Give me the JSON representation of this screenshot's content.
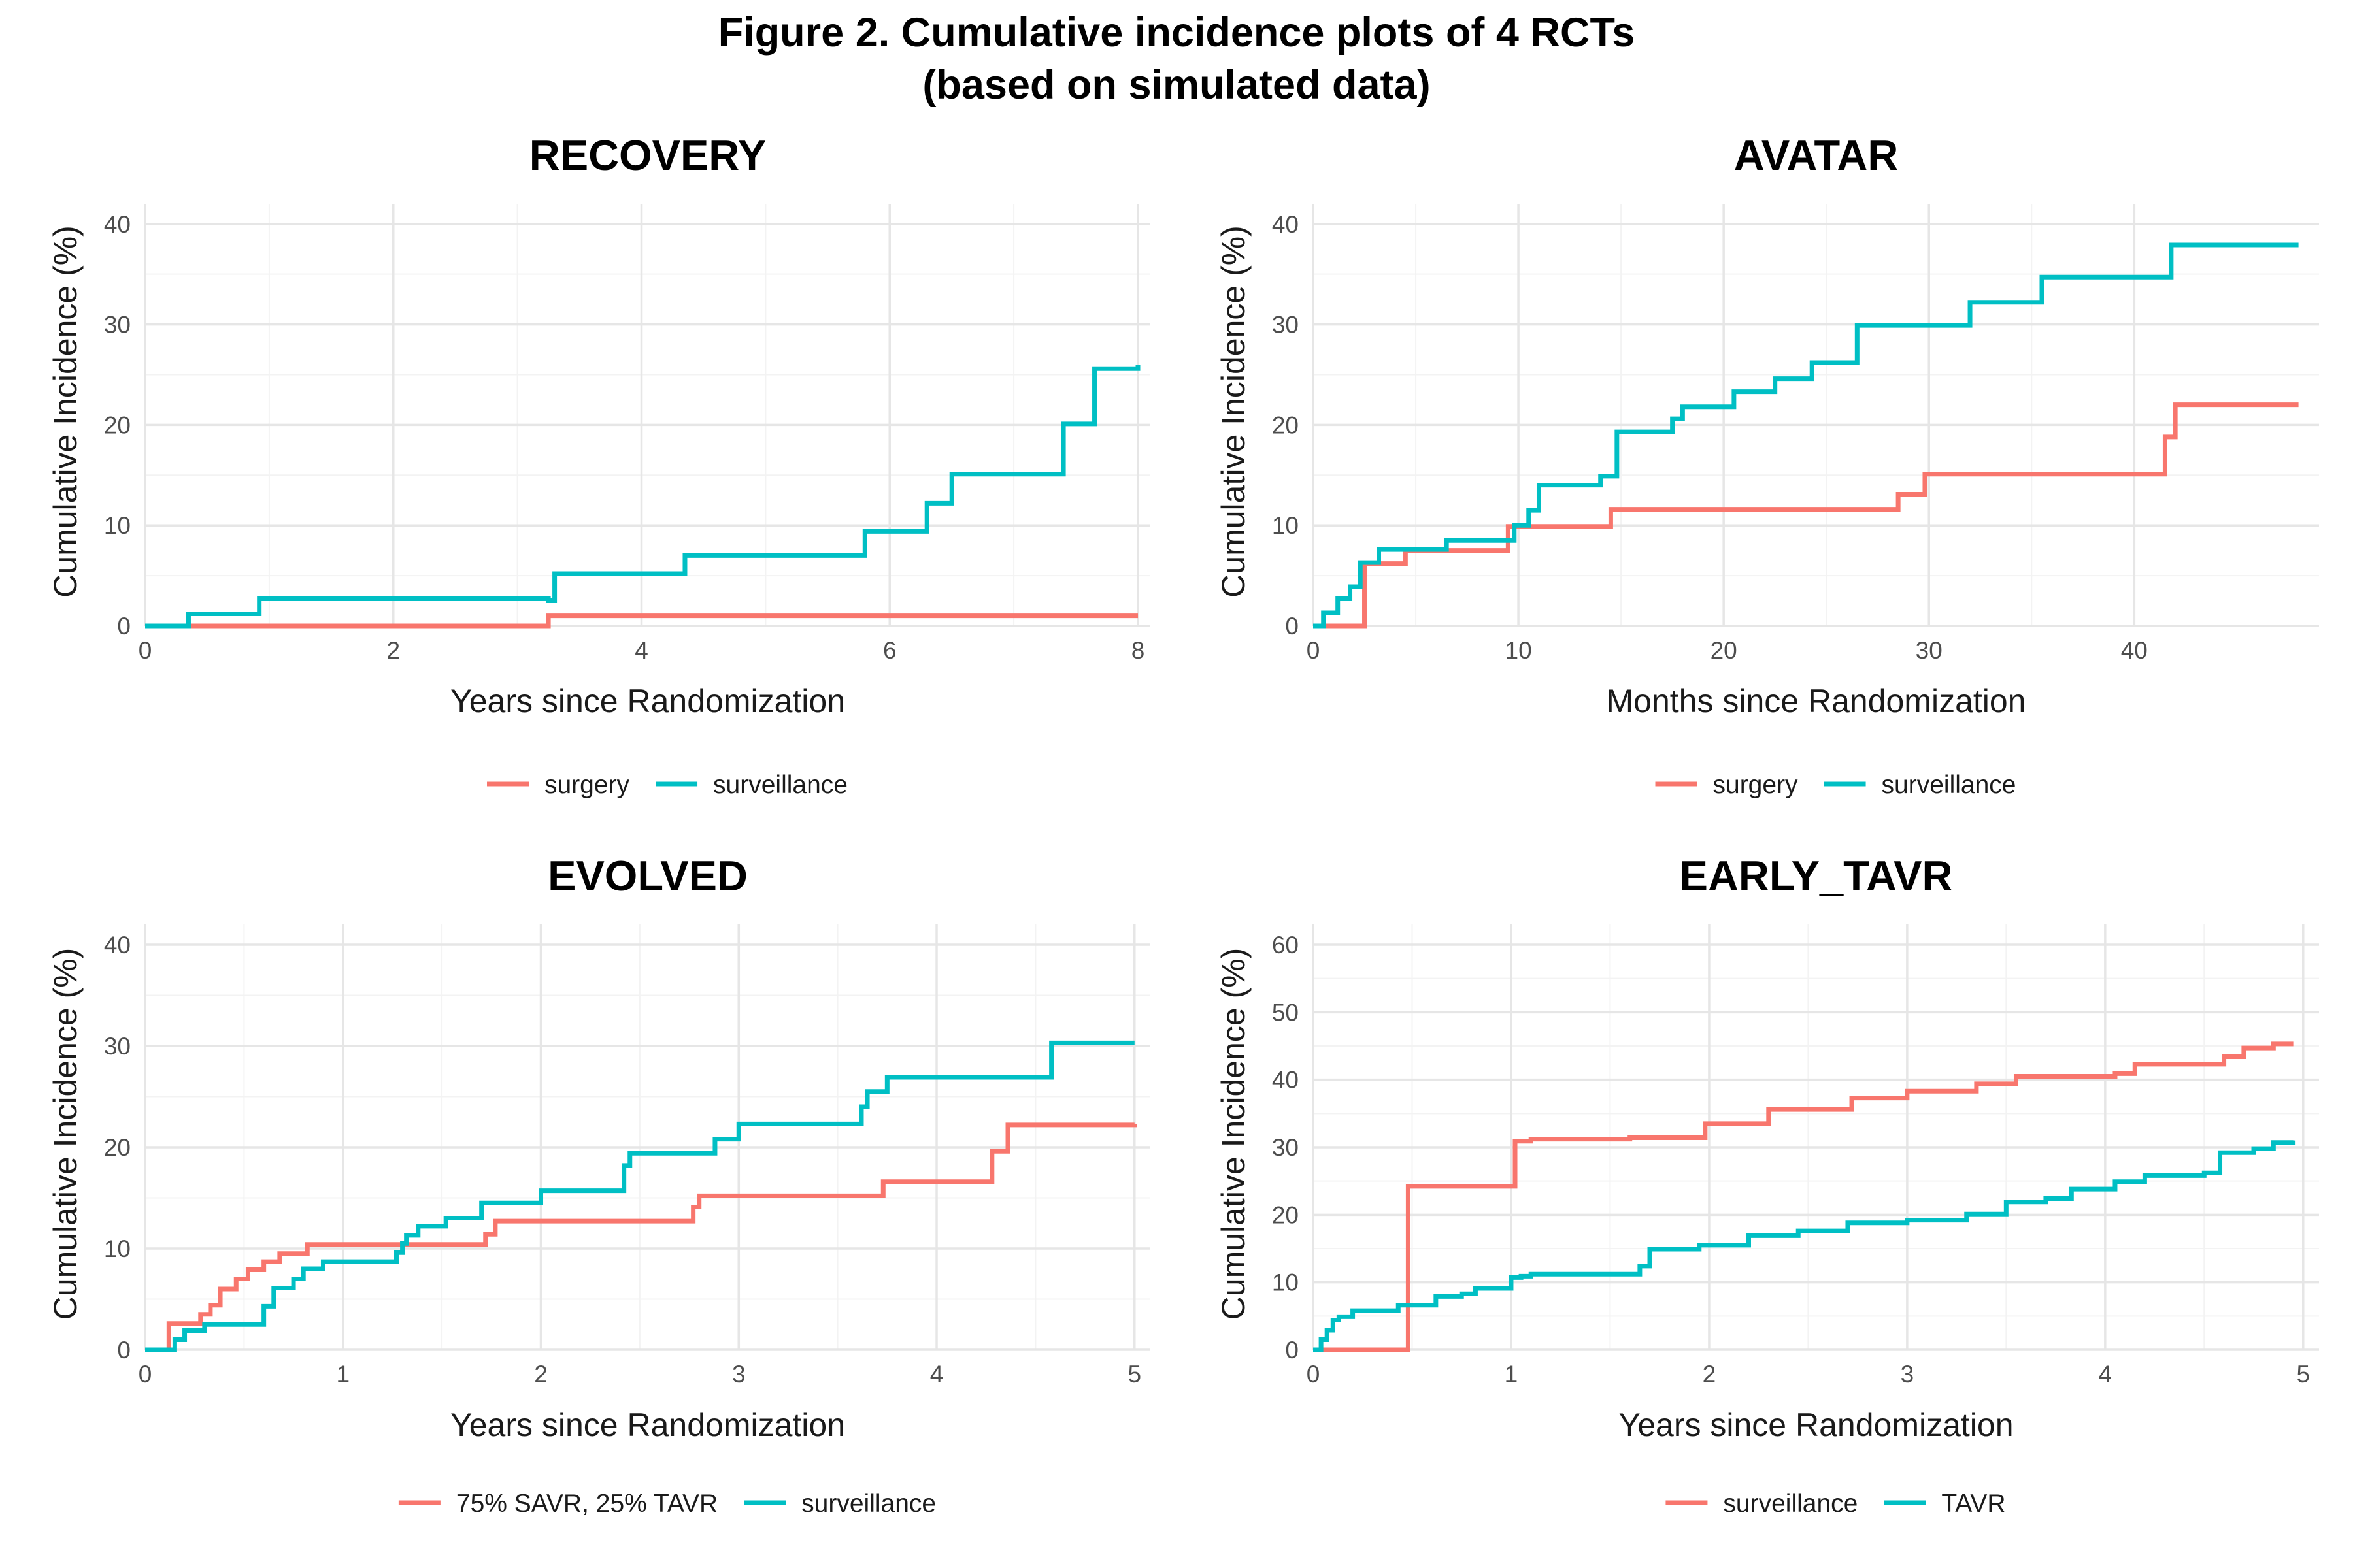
{
  "figure": {
    "title_line1": "Figure 2. Cumulative incidence plots of 4 RCTs",
    "title_line2": "(based on simulated data)"
  },
  "chart_data": [
    {
      "type": "line",
      "step": true,
      "title": "RECOVERY",
      "xlabel": "Years since Randomization",
      "ylabel": "Cumulative Incidence (%)",
      "xlim": [
        0,
        8.1
      ],
      "ylim": [
        0,
        42
      ],
      "xticks": [
        0,
        2,
        4,
        6,
        8
      ],
      "yticks": [
        0,
        10,
        20,
        30,
        40
      ],
      "grid": true,
      "legend_position": "bottom",
      "series": [
        {
          "name": "surgery",
          "color": "#F8766D",
          "x": [
            0,
            3.25,
            8.0
          ],
          "y": [
            0,
            1.0,
            1.0
          ]
        },
        {
          "name": "surveillance",
          "color": "#00BFC4",
          "x": [
            0,
            0.35,
            0.92,
            3.25,
            3.3,
            4.35,
            5.8,
            6.3,
            6.5,
            7.4,
            7.65,
            8.0
          ],
          "y": [
            0,
            1.2,
            2.7,
            2.5,
            5.2,
            7.0,
            9.4,
            12.2,
            15.1,
            20.1,
            25.6,
            26.0
          ]
        }
      ]
    },
    {
      "type": "line",
      "step": true,
      "title": "AVATAR",
      "xlabel": "Months since Randomization",
      "ylabel": "Cumulative Incidence (%)",
      "xlim": [
        0,
        49
      ],
      "ylim": [
        0,
        42
      ],
      "xticks": [
        0,
        10,
        20,
        30,
        40
      ],
      "yticks": [
        0,
        10,
        20,
        30,
        40
      ],
      "grid": true,
      "legend_position": "bottom",
      "series": [
        {
          "name": "surgery",
          "color": "#F8766D",
          "x": [
            0,
            2.5,
            4.5,
            9.5,
            14.5,
            28.5,
            29.8,
            41.2,
            41.5,
            42.0,
            48.0
          ],
          "y": [
            0,
            6.2,
            7.5,
            9.9,
            11.6,
            13.1,
            15.1,
            15.1,
            18.8,
            22.0,
            22.0
          ]
        },
        {
          "name": "surveillance",
          "color": "#00BFC4",
          "x": [
            0,
            0.5,
            1.2,
            1.8,
            2.3,
            3.2,
            6.5,
            9.8,
            10.5,
            11.0,
            14.0,
            14.8,
            17.5,
            18.0,
            20.5,
            22.5,
            24.3,
            26.5,
            32.0,
            35.5,
            41.8,
            48.0
          ],
          "y": [
            0,
            1.3,
            2.7,
            3.9,
            6.3,
            7.6,
            8.5,
            10.0,
            11.5,
            14.0,
            14.9,
            19.3,
            20.6,
            21.8,
            23.3,
            24.6,
            26.2,
            29.9,
            32.2,
            34.7,
            37.9,
            37.9
          ]
        }
      ]
    },
    {
      "type": "line",
      "step": true,
      "title": "EVOLVED",
      "xlabel": "Years since Randomization",
      "ylabel": "Cumulative Incidence (%)",
      "xlim": [
        0,
        5.08
      ],
      "ylim": [
        0,
        42
      ],
      "xticks": [
        0,
        1,
        2,
        3,
        4,
        5
      ],
      "yticks": [
        0,
        10,
        20,
        30,
        40
      ],
      "grid": true,
      "legend_position": "bottom",
      "series": [
        {
          "name": "75% SAVR, 25% TAVR",
          "color": "#F8766D",
          "x": [
            0,
            0.12,
            0.28,
            0.33,
            0.38,
            0.46,
            0.52,
            0.6,
            0.68,
            0.82,
            1.72,
            1.77,
            2.77,
            2.8,
            3.73,
            4.28,
            4.36,
            5.0
          ],
          "y": [
            0,
            2.6,
            3.5,
            4.4,
            6.0,
            7.0,
            7.9,
            8.7,
            9.5,
            10.4,
            11.4,
            12.7,
            14.1,
            15.2,
            16.6,
            19.6,
            22.2,
            22.3
          ]
        },
        {
          "name": "surveillance",
          "color": "#00BFC4",
          "x": [
            0,
            0.15,
            0.2,
            0.3,
            0.6,
            0.65,
            0.75,
            0.8,
            0.85,
            0.9,
            1.27,
            1.3,
            1.32,
            1.38,
            1.52,
            1.7,
            2.0,
            2.42,
            2.45,
            2.88,
            3.0,
            3.62,
            3.65,
            3.75,
            4.58,
            5.0
          ],
          "y": [
            0,
            1.0,
            1.9,
            2.5,
            4.3,
            6.1,
            7.0,
            8.0,
            8.0,
            8.7,
            9.6,
            10.5,
            11.3,
            12.2,
            13.0,
            14.5,
            15.7,
            18.2,
            19.4,
            20.8,
            22.3,
            24.0,
            25.5,
            26.9,
            30.3,
            30.3
          ]
        }
      ]
    },
    {
      "type": "line",
      "step": true,
      "title": "EARLY_TAVR",
      "xlabel": "Years since Randomization",
      "ylabel": "Cumulative Incidence (%)",
      "xlim": [
        0,
        5.08
      ],
      "ylim": [
        0,
        63
      ],
      "xticks": [
        0,
        1,
        2,
        3,
        4,
        5
      ],
      "yticks": [
        0,
        10,
        20,
        30,
        40,
        50,
        60
      ],
      "grid": true,
      "legend_position": "bottom",
      "series": [
        {
          "name": "surveillance",
          "color": "#F8766D",
          "x": [
            0,
            0.48,
            1.02,
            1.1,
            1.3,
            1.6,
            1.98,
            2.3,
            2.72,
            3.0,
            3.35,
            3.55,
            4.05,
            4.15,
            4.6,
            4.7,
            4.85,
            4.95
          ],
          "y": [
            0,
            24.2,
            30.9,
            31.2,
            31.2,
            31.4,
            33.5,
            35.6,
            37.3,
            38.3,
            39.4,
            40.5,
            40.9,
            42.3,
            43.4,
            44.7,
            45.3,
            45.3
          ]
        },
        {
          "name": "TAVR",
          "color": "#00BFC4",
          "x": [
            0,
            0.04,
            0.07,
            0.1,
            0.13,
            0.2,
            0.43,
            0.62,
            0.75,
            0.82,
            1.0,
            1.05,
            1.1,
            1.65,
            1.7,
            1.95,
            2.2,
            2.45,
            2.7,
            3.0,
            3.3,
            3.5,
            3.7,
            3.83,
            4.05,
            4.2,
            4.5,
            4.58,
            4.75,
            4.85,
            4.95
          ],
          "y": [
            0,
            1.5,
            2.9,
            4.4,
            4.9,
            5.8,
            6.6,
            7.9,
            8.3,
            9.1,
            10.7,
            10.9,
            11.2,
            12.4,
            14.9,
            15.5,
            16.9,
            17.6,
            18.8,
            19.2,
            20.1,
            21.9,
            22.4,
            23.8,
            24.9,
            25.8,
            26.2,
            29.2,
            29.8,
            30.7,
            31.0
          ]
        }
      ]
    }
  ]
}
